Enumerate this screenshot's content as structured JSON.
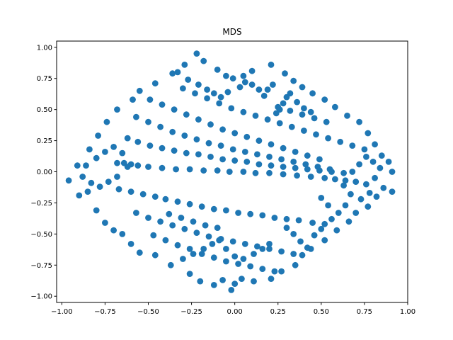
{
  "chart_data": {
    "type": "scatter",
    "title": "MDS",
    "xlabel": "",
    "ylabel": "",
    "xlim": [
      -1.03,
      1.0
    ],
    "ylim": [
      -1.05,
      1.05
    ],
    "xticks": [
      -1.0,
      -0.75,
      -0.5,
      -0.25,
      0.0,
      0.25,
      0.5,
      0.75,
      1.0
    ],
    "xtick_labels": [
      "−1.00",
      "−0.75",
      "−0.50",
      "−0.25",
      "0.00",
      "0.25",
      "0.50",
      "0.75",
      "1.00"
    ],
    "yticks": [
      -1.0,
      -0.75,
      -0.5,
      -0.25,
      0.0,
      0.25,
      0.5,
      0.75,
      1.0
    ],
    "ytick_labels": [
      "−1.00",
      "−0.75",
      "−0.50",
      "−0.25",
      "0.00",
      "0.25",
      "0.50",
      "0.75",
      "1.00"
    ],
    "grid": false,
    "marker_color": "#1f77b4",
    "series": [
      {
        "points": [
          [
            -0.96,
            -0.07
          ],
          [
            -0.9,
            -0.19
          ],
          [
            -0.85,
            -0.16
          ],
          [
            -0.8,
            -0.31
          ],
          [
            -0.75,
            -0.41
          ],
          [
            -0.7,
            -0.47
          ],
          [
            -0.65,
            -0.5
          ],
          [
            -0.6,
            -0.58
          ],
          [
            -0.55,
            -0.65
          ],
          [
            -0.46,
            -0.67
          ],
          [
            -0.37,
            -0.75
          ],
          [
            -0.26,
            -0.82
          ],
          [
            -0.2,
            -0.88
          ],
          [
            -0.12,
            -0.91
          ],
          [
            -0.07,
            -0.87
          ],
          [
            -0.02,
            -0.95
          ],
          [
            0.0,
            -0.9
          ],
          [
            -0.91,
            0.05
          ],
          [
            -0.86,
            0.05
          ],
          [
            -0.84,
            0.18
          ],
          [
            -0.79,
            0.29
          ],
          [
            -0.74,
            0.4
          ],
          [
            -0.68,
            0.5
          ],
          [
            -0.59,
            0.58
          ],
          [
            -0.55,
            0.65
          ],
          [
            -0.46,
            0.71
          ],
          [
            -0.36,
            0.79
          ],
          [
            -0.29,
            0.86
          ],
          [
            -0.22,
            0.95
          ],
          [
            -0.18,
            0.89
          ],
          [
            -0.1,
            0.82
          ],
          [
            -0.05,
            0.77
          ],
          [
            -0.01,
            0.75
          ],
          [
            0.91,
            0.0
          ],
          [
            0.91,
            -0.16
          ],
          [
            0.86,
            -0.13
          ],
          [
            0.82,
            -0.2
          ],
          [
            0.77,
            -0.28
          ],
          [
            0.7,
            -0.33
          ],
          [
            0.66,
            -0.4
          ],
          [
            0.59,
            -0.47
          ],
          [
            0.52,
            -0.55
          ],
          [
            0.44,
            -0.62
          ],
          [
            0.39,
            -0.67
          ],
          [
            0.35,
            -0.75
          ],
          [
            0.27,
            -0.8
          ],
          [
            0.21,
            -0.86
          ],
          [
            0.11,
            -0.88
          ],
          [
            0.04,
            -0.86
          ],
          [
            0.89,
            0.08
          ],
          [
            0.85,
            0.13
          ],
          [
            0.81,
            0.22
          ],
          [
            0.77,
            0.31
          ],
          [
            0.72,
            0.4
          ],
          [
            0.65,
            0.45
          ],
          [
            0.58,
            0.52
          ],
          [
            0.52,
            0.58
          ],
          [
            0.45,
            0.63
          ],
          [
            0.39,
            0.68
          ],
          [
            0.34,
            0.73
          ],
          [
            0.29,
            0.79
          ],
          [
            0.21,
            0.86
          ],
          [
            0.1,
            0.81
          ],
          [
            0.05,
            0.77
          ],
          [
            -0.68,
            0.07
          ],
          [
            -0.64,
            0.07
          ],
          [
            -0.6,
            0.06
          ],
          [
            -0.56,
            0.05
          ],
          [
            -0.5,
            0.04
          ],
          [
            -0.42,
            0.03
          ],
          [
            -0.34,
            0.02
          ],
          [
            -0.26,
            0.02
          ],
          [
            -0.18,
            0.01
          ],
          [
            -0.1,
            0.01
          ],
          [
            -0.03,
            0.0
          ],
          [
            0.05,
            0.0
          ],
          [
            0.12,
            -0.01
          ],
          [
            0.2,
            -0.01
          ],
          [
            0.28,
            -0.02
          ],
          [
            0.36,
            -0.03
          ],
          [
            0.44,
            -0.04
          ],
          [
            0.52,
            -0.05
          ],
          [
            0.58,
            -0.06
          ],
          [
            0.64,
            -0.07
          ],
          [
            0.7,
            -0.08
          ],
          [
            0.76,
            -0.1
          ],
          [
            -0.67,
            -0.14
          ],
          [
            -0.6,
            -0.16
          ],
          [
            -0.53,
            -0.18
          ],
          [
            -0.46,
            -0.2
          ],
          [
            -0.4,
            -0.22
          ],
          [
            -0.33,
            -0.24
          ],
          [
            -0.26,
            -0.26
          ],
          [
            -0.19,
            -0.28
          ],
          [
            -0.12,
            -0.3
          ],
          [
            -0.05,
            -0.31
          ],
          [
            0.02,
            -0.33
          ],
          [
            0.09,
            -0.34
          ],
          [
            0.16,
            -0.35
          ],
          [
            0.23,
            -0.37
          ],
          [
            0.3,
            -0.38
          ],
          [
            0.37,
            -0.39
          ],
          [
            0.45,
            -0.41
          ],
          [
            0.52,
            -0.42
          ],
          [
            -0.62,
            0.27
          ],
          [
            -0.56,
            0.24
          ],
          [
            -0.49,
            0.21
          ],
          [
            -0.42,
            0.19
          ],
          [
            -0.35,
            0.17
          ],
          [
            -0.28,
            0.15
          ],
          [
            -0.21,
            0.14
          ],
          [
            -0.14,
            0.12
          ],
          [
            -0.07,
            0.1
          ],
          [
            0.0,
            0.09
          ],
          [
            0.07,
            0.08
          ],
          [
            0.14,
            0.06
          ],
          [
            0.21,
            0.05
          ],
          [
            0.28,
            0.04
          ],
          [
            0.35,
            0.03
          ],
          [
            0.42,
            0.02
          ],
          [
            0.49,
            0.01
          ],
          [
            0.56,
            0.0
          ],
          [
            0.63,
            -0.01
          ],
          [
            -0.57,
            0.44
          ],
          [
            -0.5,
            0.4
          ],
          [
            -0.43,
            0.36
          ],
          [
            -0.36,
            0.32
          ],
          [
            -0.29,
            0.29
          ],
          [
            -0.22,
            0.26
          ],
          [
            -0.15,
            0.23
          ],
          [
            -0.08,
            0.21
          ],
          [
            -0.01,
            0.18
          ],
          [
            0.06,
            0.16
          ],
          [
            0.13,
            0.14
          ],
          [
            0.2,
            0.12
          ],
          [
            0.27,
            0.1
          ],
          [
            0.34,
            0.08
          ],
          [
            0.41,
            0.06
          ],
          [
            0.48,
            0.04
          ],
          [
            0.55,
            0.02
          ],
          [
            -0.49,
            0.58
          ],
          [
            -0.42,
            0.54
          ],
          [
            -0.35,
            0.5
          ],
          [
            -0.28,
            0.46
          ],
          [
            -0.21,
            0.42
          ],
          [
            -0.14,
            0.38
          ],
          [
            -0.07,
            0.34
          ],
          [
            0.0,
            0.31
          ],
          [
            0.07,
            0.28
          ],
          [
            0.14,
            0.25
          ],
          [
            0.21,
            0.22
          ],
          [
            0.28,
            0.19
          ],
          [
            0.35,
            0.16
          ],
          [
            0.42,
            0.13
          ],
          [
            0.49,
            0.1
          ],
          [
            -0.57,
            -0.33
          ],
          [
            -0.5,
            -0.37
          ],
          [
            -0.43,
            -0.4
          ],
          [
            -0.36,
            -0.43
          ],
          [
            -0.29,
            -0.46
          ],
          [
            -0.22,
            -0.49
          ],
          [
            -0.15,
            -0.52
          ],
          [
            -0.08,
            -0.54
          ],
          [
            -0.01,
            -0.56
          ],
          [
            0.06,
            -0.58
          ],
          [
            0.13,
            -0.6
          ],
          [
            0.2,
            -0.62
          ],
          [
            0.27,
            -0.64
          ],
          [
            0.34,
            -0.66
          ],
          [
            -0.47,
            -0.51
          ],
          [
            -0.4,
            -0.55
          ],
          [
            -0.33,
            -0.59
          ],
          [
            -0.26,
            -0.62
          ],
          [
            -0.19,
            -0.66
          ],
          [
            -0.12,
            -0.69
          ],
          [
            -0.05,
            -0.72
          ],
          [
            0.02,
            -0.74
          ],
          [
            0.09,
            -0.76
          ],
          [
            0.16,
            -0.78
          ],
          [
            0.23,
            -0.8
          ],
          [
            -0.3,
            0.67
          ],
          [
            -0.23,
            0.63
          ],
          [
            -0.16,
            0.59
          ],
          [
            -0.09,
            0.55
          ],
          [
            -0.02,
            0.51
          ],
          [
            0.05,
            0.48
          ],
          [
            0.12,
            0.45
          ],
          [
            0.19,
            0.42
          ],
          [
            0.26,
            0.39
          ],
          [
            0.33,
            0.36
          ],
          [
            0.4,
            0.33
          ],
          [
            0.47,
            0.3
          ],
          [
            0.54,
            0.27
          ],
          [
            0.61,
            0.24
          ],
          [
            0.68,
            0.21
          ],
          [
            0.75,
            0.18
          ],
          [
            -0.88,
            -0.04
          ],
          [
            -0.83,
            -0.09
          ],
          [
            -0.78,
            -0.12
          ],
          [
            -0.73,
            -0.08
          ],
          [
            -0.68,
            -0.04
          ],
          [
            -0.8,
            0.11
          ],
          [
            -0.75,
            0.16
          ],
          [
            -0.7,
            0.2
          ],
          [
            -0.65,
            0.15
          ],
          [
            -0.62,
            0.04
          ],
          [
            0.84,
            0.03
          ],
          [
            0.8,
            0.08
          ],
          [
            0.76,
            0.12
          ],
          [
            0.72,
            0.06
          ],
          [
            0.68,
            0.0
          ],
          [
            0.81,
            -0.05
          ],
          [
            0.78,
            -0.17
          ],
          [
            0.73,
            -0.22
          ],
          [
            0.67,
            -0.18
          ],
          [
            0.63,
            -0.11
          ],
          [
            -0.38,
            -0.34
          ],
          [
            -0.31,
            -0.37
          ],
          [
            -0.24,
            -0.4
          ],
          [
            -0.17,
            -0.43
          ],
          [
            -0.1,
            -0.45
          ],
          [
            0.25,
            0.52
          ],
          [
            0.32,
            0.49
          ],
          [
            0.39,
            0.46
          ],
          [
            0.46,
            0.43
          ],
          [
            0.53,
            0.4
          ],
          [
            0.24,
            0.47
          ],
          [
            0.26,
            0.5
          ],
          [
            0.28,
            0.55
          ],
          [
            0.3,
            0.6
          ],
          [
            0.32,
            0.63
          ],
          [
            0.36,
            0.56
          ],
          [
            0.4,
            0.51
          ],
          [
            0.44,
            0.48
          ],
          [
            0.17,
            0.61
          ],
          [
            0.19,
            0.66
          ],
          [
            0.22,
            0.7
          ],
          [
            -0.33,
            0.8
          ],
          [
            -0.27,
            0.74
          ],
          [
            -0.21,
            0.7
          ],
          [
            -0.16,
            0.66
          ],
          [
            -0.12,
            0.63
          ],
          [
            -0.08,
            0.6
          ],
          [
            -0.04,
            0.64
          ],
          [
            0.03,
            0.68
          ],
          [
            0.06,
            0.72
          ],
          [
            0.1,
            0.7
          ],
          [
            0.14,
            0.66
          ],
          [
            -0.3,
            -0.7
          ],
          [
            -0.24,
            -0.66
          ],
          [
            -0.18,
            -0.62
          ],
          [
            -0.13,
            -0.58
          ],
          [
            -0.09,
            -0.55
          ],
          [
            -0.05,
            -0.62
          ],
          [
            0.0,
            -0.68
          ],
          [
            0.05,
            -0.7
          ],
          [
            0.11,
            -0.66
          ],
          [
            0.16,
            -0.62
          ],
          [
            0.2,
            -0.58
          ],
          [
            0.3,
            -0.45
          ],
          [
            0.34,
            -0.5
          ],
          [
            0.38,
            -0.56
          ],
          [
            0.42,
            -0.61
          ],
          [
            0.46,
            -0.51
          ],
          [
            0.5,
            -0.46
          ],
          [
            0.56,
            -0.38
          ],
          [
            0.6,
            -0.33
          ],
          [
            0.64,
            -0.27
          ],
          [
            0.5,
            -0.21
          ],
          [
            0.54,
            -0.27
          ]
        ]
      }
    ]
  }
}
